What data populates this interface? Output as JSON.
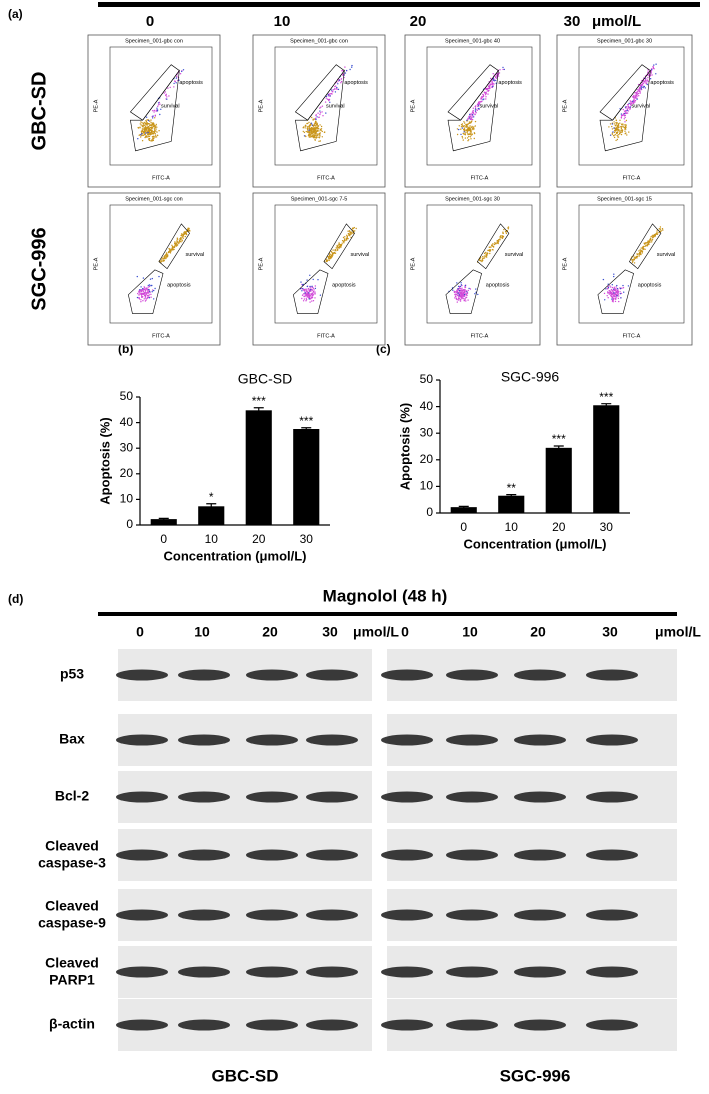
{
  "panel_labels": [
    "(a)",
    "(b)",
    "(c)",
    "(d)"
  ],
  "flow": {
    "concentrations": [
      "0",
      "10",
      "20",
      "30"
    ],
    "unit": "μmol/L",
    "rows": [
      {
        "name": "GBC-SD",
        "specimens": [
          "Specimen_001-gbc con",
          "Specimen_001-gbc con",
          "Specimen_001-gbc 40",
          "Specimen_001-gbc 30"
        ]
      },
      {
        "name": "SGC-996",
        "specimens": [
          "Specimen_001-sgc con",
          "Specimen_001-sgc 7-5",
          "Specimen_001-sgc 30",
          "Specimen_001-sgc 15"
        ]
      }
    ],
    "gate_labels": [
      "apoptosis",
      "survival"
    ],
    "x_axis": "FITC-A",
    "y_axis": "PE-A"
  },
  "chart_data": [
    {
      "type": "bar",
      "title": "GBC-SD",
      "x_label": "Concentration (μmol/L)",
      "y_label": "Apoptosis (%)",
      "categories": [
        "0",
        "10",
        "20",
        "30"
      ],
      "values": [
        2.3,
        7.3,
        44.8,
        37.5
      ],
      "errors": [
        0.3,
        1.0,
        1.0,
        0.5
      ],
      "annotations": [
        null,
        "*",
        "***",
        "***"
      ],
      "color": "#000000",
      "ylim": [
        0,
        50
      ],
      "yticks": [
        0,
        10,
        20,
        30,
        40,
        50
      ]
    },
    {
      "type": "bar",
      "title": "SGC-996",
      "x_label": "Concentration (μmol/L)",
      "y_label": "Apoptosis (%)",
      "categories": [
        "0",
        "10",
        "20",
        "30"
      ],
      "values": [
        2.2,
        6.5,
        24.5,
        40.5
      ],
      "errors": [
        0.3,
        0.4,
        0.7,
        0.6
      ],
      "annotations": [
        null,
        "**",
        "***",
        "***"
      ],
      "color": "#000000",
      "ylim": [
        0,
        50
      ],
      "yticks": [
        0,
        10,
        20,
        30,
        40,
        50
      ]
    }
  ],
  "western": {
    "title": "Magnolol (48 h)",
    "concentrations": [
      "0",
      "10",
      "20",
      "30"
    ],
    "unit": "μmol/L",
    "proteins": [
      "p53",
      "Bax",
      "Bcl-2",
      "Cleaved caspase-3",
      "Cleaved caspase-9",
      "Cleaved PARP1",
      "β-actin"
    ],
    "cell_lines": [
      "GBC-SD",
      "SGC-996"
    ]
  }
}
